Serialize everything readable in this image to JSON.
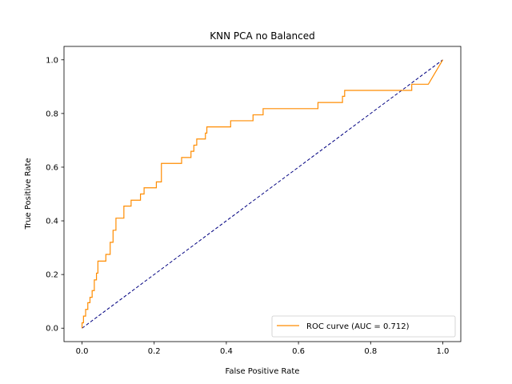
{
  "chart_data": {
    "type": "line",
    "title": "KNN PCA no Balanced",
    "xlabel": "False Positive Rate",
    "ylabel": "True Positive Rate",
    "xlim": [
      -0.05,
      1.05
    ],
    "ylim": [
      -0.05,
      1.05
    ],
    "x_ticks": [
      "0.0",
      "0.2",
      "0.4",
      "0.6",
      "0.8",
      "1.0"
    ],
    "y_ticks": [
      "0.0",
      "0.2",
      "0.4",
      "0.6",
      "0.8",
      "1.0"
    ],
    "grid": false,
    "legend_position": "lower right",
    "series": [
      {
        "name": "ROC curve (AUC = 0.712)",
        "color": "#ff8c00",
        "style": "solid",
        "x": [
          0.0,
          0.0,
          0.004,
          0.004,
          0.01,
          0.01,
          0.016,
          0.016,
          0.022,
          0.022,
          0.028,
          0.028,
          0.034,
          0.034,
          0.04,
          0.04,
          0.044,
          0.044,
          0.066,
          0.066,
          0.078,
          0.078,
          0.086,
          0.086,
          0.094,
          0.094,
          0.116,
          0.116,
          0.136,
          0.136,
          0.162,
          0.162,
          0.172,
          0.172,
          0.206,
          0.206,
          0.22,
          0.22,
          0.276,
          0.276,
          0.302,
          0.302,
          0.31,
          0.31,
          0.318,
          0.318,
          0.342,
          0.342,
          0.346,
          0.346,
          0.412,
          0.412,
          0.474,
          0.474,
          0.502,
          0.502,
          0.654,
          0.654,
          0.722,
          0.722,
          0.728,
          0.728,
          0.914,
          0.914,
          0.924,
          0.924,
          0.96,
          1.0
        ],
        "y": [
          0.0,
          0.02,
          0.02,
          0.045,
          0.045,
          0.07,
          0.07,
          0.095,
          0.095,
          0.115,
          0.115,
          0.14,
          0.14,
          0.18,
          0.18,
          0.205,
          0.205,
          0.25,
          0.25,
          0.275,
          0.275,
          0.32,
          0.32,
          0.365,
          0.365,
          0.41,
          0.41,
          0.455,
          0.455,
          0.477,
          0.477,
          0.5,
          0.5,
          0.523,
          0.523,
          0.545,
          0.545,
          0.614,
          0.614,
          0.636,
          0.636,
          0.659,
          0.659,
          0.682,
          0.682,
          0.705,
          0.705,
          0.727,
          0.727,
          0.75,
          0.75,
          0.773,
          0.773,
          0.795,
          0.795,
          0.818,
          0.818,
          0.841,
          0.841,
          0.864,
          0.864,
          0.886,
          0.886,
          0.909,
          0.909,
          0.909,
          0.909,
          1.0
        ]
      },
      {
        "name": "",
        "color": "#000080",
        "style": "dashed",
        "x": [
          0,
          1
        ],
        "y": [
          0,
          1
        ]
      }
    ]
  }
}
